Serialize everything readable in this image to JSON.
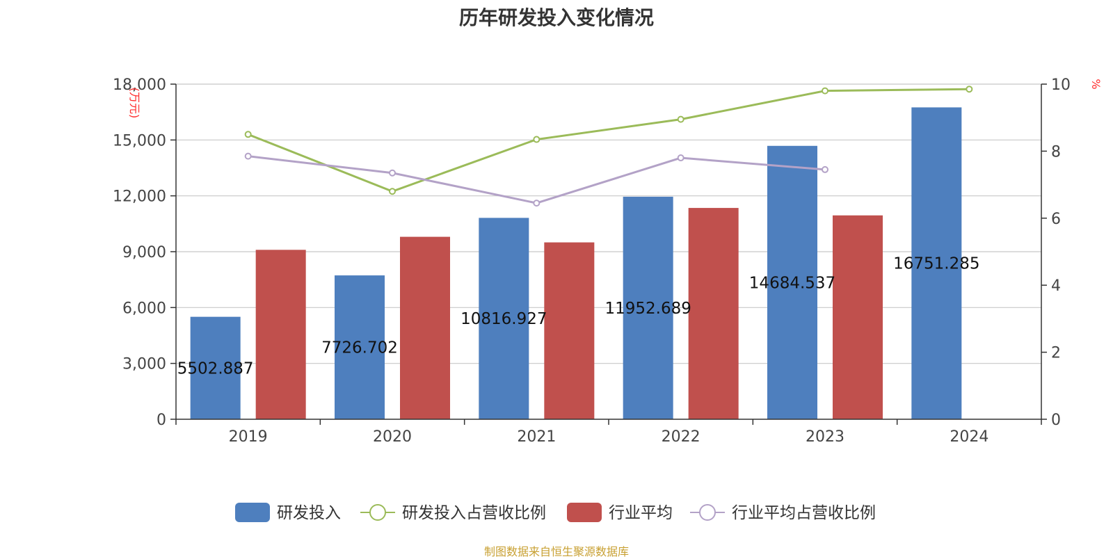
{
  "chart_data": {
    "type": "bar",
    "title": "历年研发投入变化情况",
    "categories": [
      "2019",
      "2020",
      "2021",
      "2022",
      "2023",
      "2024"
    ],
    "y_left": {
      "unit_label": "(万元)",
      "ylim": [
        0,
        18000
      ],
      "ticks": [
        "0",
        "3,000",
        "6,000",
        "9,000",
        "12,000",
        "15,000",
        "18,000"
      ]
    },
    "y_right": {
      "unit_label": "%",
      "ylim": [
        0,
        10
      ],
      "ticks": [
        "0",
        "2",
        "4",
        "6",
        "8",
        "10"
      ]
    },
    "grid": true,
    "legend_position": "bottom",
    "series": [
      {
        "name": "研发投入",
        "kind": "bar",
        "axis": "left",
        "color": "#4e7fbe",
        "values": [
          5502.887,
          7726.702,
          10816.927,
          11952.689,
          14684.537,
          16751.285
        ],
        "labels": [
          "5502.887",
          "7726.702",
          "10816.927",
          "11952.689",
          "14684.537",
          "16751.285"
        ]
      },
      {
        "name": "研发投入占营收比例",
        "kind": "line",
        "axis": "right",
        "color": "#9bbb59",
        "values": [
          8.5,
          6.8,
          8.35,
          8.95,
          9.8,
          9.85
        ]
      },
      {
        "name": "行业平均",
        "kind": "bar",
        "axis": "left",
        "color": "#c0504d",
        "values": [
          9100,
          9800,
          9500,
          11350,
          10950,
          null
        ]
      },
      {
        "name": "行业平均占营收比例",
        "kind": "line",
        "axis": "right",
        "color": "#b3a2c7",
        "values": [
          7.85,
          7.35,
          6.45,
          7.8,
          7.45,
          null
        ]
      }
    ]
  },
  "source_note": "制图数据来自恒生聚源数据库"
}
